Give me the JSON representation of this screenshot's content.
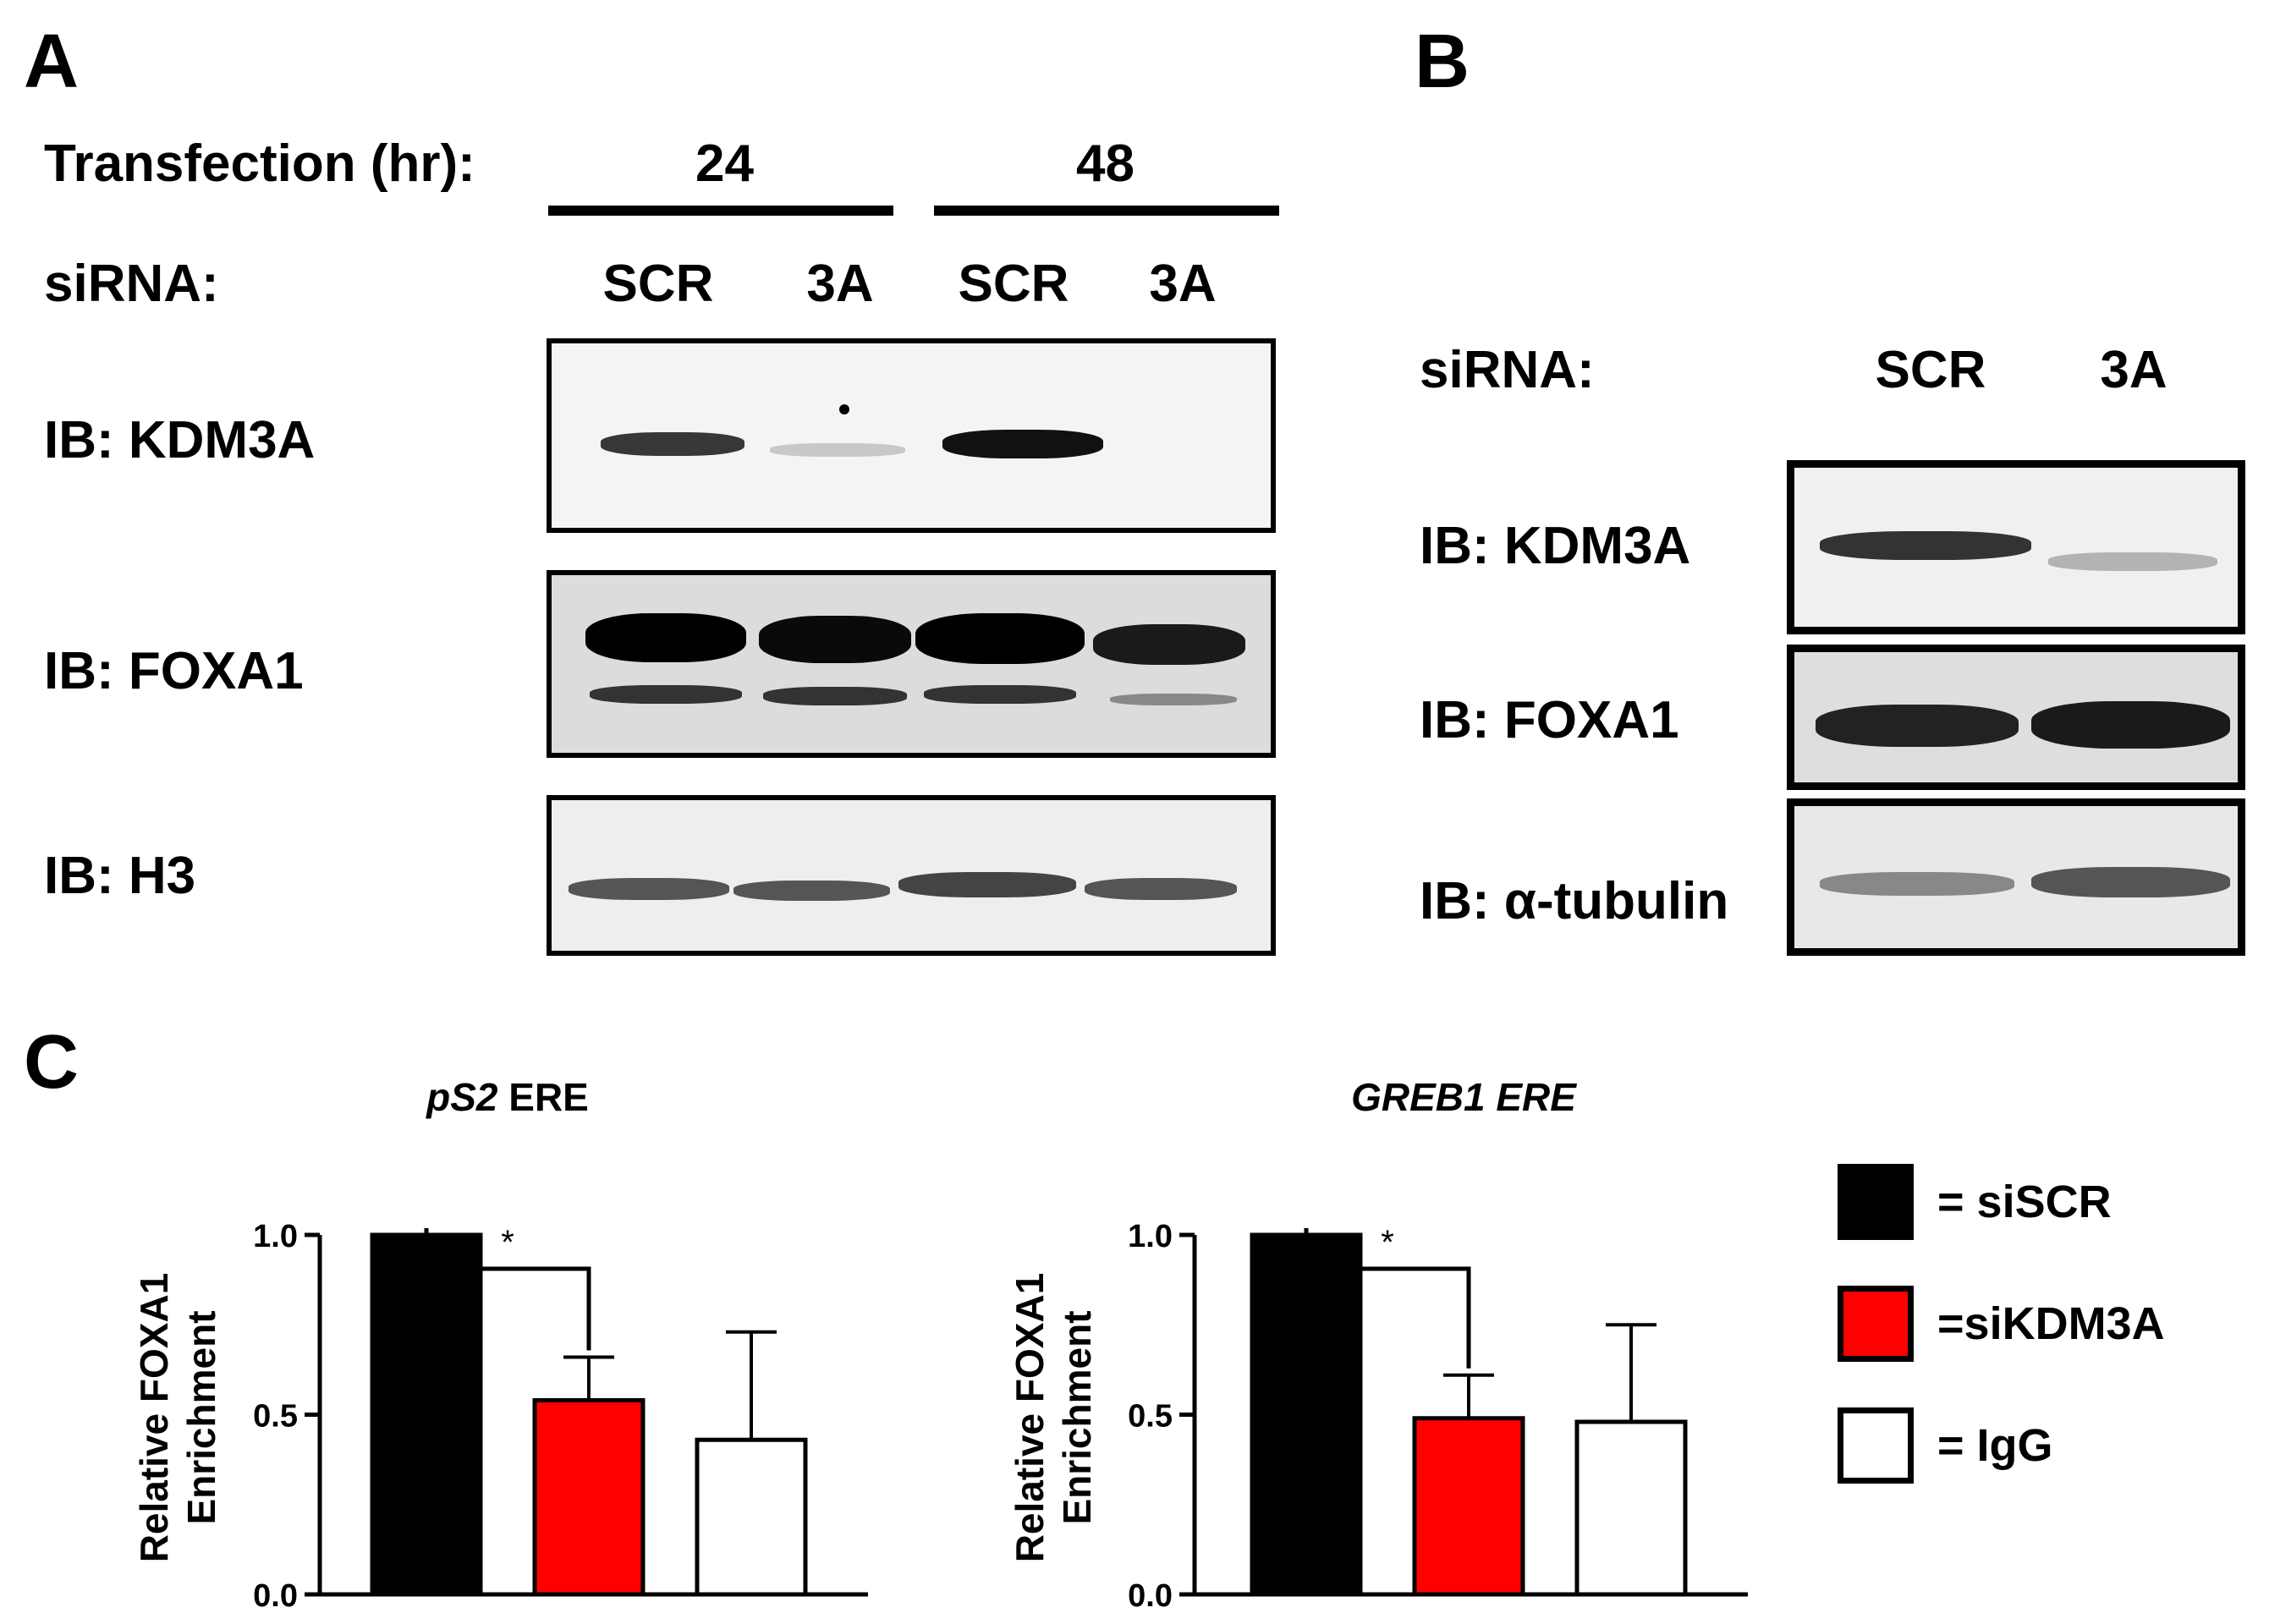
{
  "panels": {
    "a": "A",
    "b": "B",
    "c": "C"
  },
  "panel_a": {
    "transfection_label": "Transfection (hr):",
    "time_24": "24",
    "time_48": "48",
    "sirna_label": "siRNA:",
    "lanes": [
      "SCR",
      "3A",
      "SCR",
      "3A"
    ],
    "blots": [
      "IB: KDM3A",
      "IB: FOXA1",
      "IB: H3"
    ]
  },
  "panel_b": {
    "sirna_label": "siRNA:",
    "lanes": [
      "SCR",
      "3A"
    ],
    "blots": [
      "IB: KDM3A",
      "IB: FOXA1",
      "IB: α-tubulin"
    ]
  },
  "legend": {
    "items": [
      {
        "label": "= siSCR",
        "color": "#000000"
      },
      {
        "label": "=siKDM3A",
        "color": "#ff0000"
      },
      {
        "label": "= IgG",
        "color": "#ffffff"
      }
    ]
  },
  "colors": {
    "siSCR": "#000000",
    "siKDM3A": "#ff0000",
    "IgG": "#ffffff"
  },
  "chart_data": [
    {
      "type": "bar",
      "title_italic": "pS2",
      "title_rest": " ERE",
      "ylabel_line1": "Relative FOXA1",
      "ylabel_line2": "Enrichment",
      "ylim": [
        0,
        1.0
      ],
      "yticks": [
        "0.0",
        "0.5",
        "1.0"
      ],
      "values": [
        1.0,
        0.54,
        0.43
      ],
      "errors": [
        0,
        0.12,
        0.3
      ],
      "significance": "*"
    },
    {
      "type": "bar",
      "title_italic": "GREB1 ERE",
      "title_rest": "",
      "ylabel_line1": "Relative FOXA1",
      "ylabel_line2": "Enrichment",
      "ylim": [
        0,
        1.0
      ],
      "yticks": [
        "0.0",
        "0.5",
        "1.0"
      ],
      "values": [
        1.0,
        0.49,
        0.48
      ],
      "errors": [
        0,
        0.12,
        0.27
      ],
      "significance": "*"
    }
  ]
}
